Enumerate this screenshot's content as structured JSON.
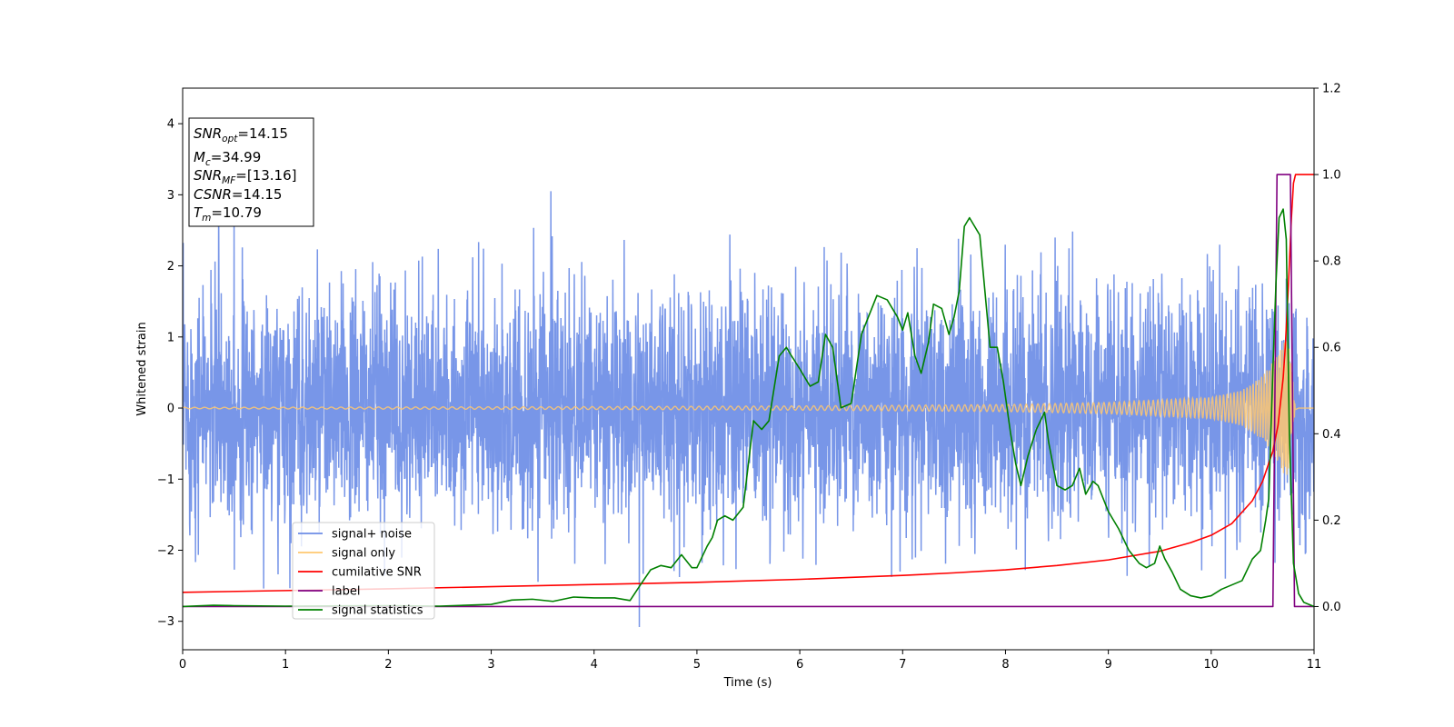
{
  "chart_data": {
    "type": "line",
    "title": "",
    "xlabel": "Time (s)",
    "ylabel_left": "Whitened strain",
    "ylabel_right": "",
    "xlim": [
      0,
      11
    ],
    "ylim_left": [
      -3.4,
      4.5
    ],
    "ylim_right": [
      -0.1,
      1.2
    ],
    "x_ticks": [
      "0",
      "1",
      "2",
      "3",
      "4",
      "5",
      "6",
      "7",
      "8",
      "9",
      "10",
      "11"
    ],
    "y_ticks_left": [
      "−3",
      "−2",
      "−1",
      "0",
      "1",
      "2",
      "3",
      "4"
    ],
    "y_ticks_right": [
      "0.0",
      "0.2",
      "0.4",
      "0.6",
      "0.8",
      "1.0",
      "1.2"
    ],
    "grid": false,
    "legend_position": "lower-left",
    "legend": [
      {
        "label": "signal+ noise",
        "color": "#6d8de6"
      },
      {
        "label": "signal only",
        "color": "#ffc870"
      },
      {
        "label": "cumilative SNR",
        "color": "#ff0000"
      },
      {
        "label": "label",
        "color": "#800080"
      },
      {
        "label": "signal statistics",
        "color": "#008000"
      }
    ],
    "info_box": [
      {
        "main": "SNR",
        "sub": "opt",
        "value": "=14.15"
      },
      {
        "main": "M",
        "sub": "c",
        "value": "=34.99"
      },
      {
        "main": "SNR",
        "sub": "MF",
        "value": "=[13.16]"
      },
      {
        "main": "CSNR",
        "sub": "",
        "value": "=14.15"
      },
      {
        "main": "T",
        "sub": "m",
        "value": "=10.79"
      }
    ],
    "series": [
      {
        "name": "signal+ noise",
        "axis": "left",
        "color": "#6d8de6",
        "description": "whitened noise, roughly ±1 sigma, spikes to about ±2.5",
        "x_range": [
          0,
          11
        ],
        "peaks": [
          [
            0.35,
            2.9
          ],
          [
            0.5,
            2.7
          ],
          [
            3.58,
            3.05
          ],
          [
            4.44,
            -3.08
          ]
        ]
      },
      {
        "name": "signal only",
        "axis": "left",
        "color": "#ffc870",
        "description": "chirp, amplitude grows toward merger",
        "x_range": [
          0,
          11
        ],
        "envelope": [
          [
            0,
            0.01
          ],
          [
            4,
            0.02
          ],
          [
            6,
            0.03
          ],
          [
            8,
            0.05
          ],
          [
            9,
            0.08
          ],
          [
            10,
            0.15
          ],
          [
            10.3,
            0.25
          ],
          [
            10.5,
            0.45
          ],
          [
            10.65,
            0.75
          ],
          [
            10.72,
            1.0
          ],
          [
            10.76,
            0.85
          ],
          [
            10.8,
            0.3
          ],
          [
            10.85,
            0.0
          ]
        ]
      },
      {
        "name": "cumilative SNR",
        "axis": "right",
        "color": "#ff0000",
        "x": [
          0,
          1,
          2,
          3,
          4,
          5,
          6,
          7,
          7.5,
          8,
          8.5,
          9,
          9.5,
          9.8,
          10,
          10.2,
          10.4,
          10.5,
          10.6,
          10.65,
          10.7,
          10.72,
          10.75,
          10.78,
          10.8,
          10.82,
          11
        ],
        "y": [
          0.033,
          0.037,
          0.041,
          0.046,
          0.051,
          0.056,
          0.063,
          0.072,
          0.078,
          0.085,
          0.095,
          0.108,
          0.128,
          0.148,
          0.165,
          0.192,
          0.245,
          0.29,
          0.36,
          0.42,
          0.53,
          0.6,
          0.74,
          0.9,
          0.98,
          1.0,
          1.0
        ]
      },
      {
        "name": "label",
        "axis": "right",
        "color": "#800080",
        "x": [
          0,
          10.6,
          10.64,
          10.77,
          10.81,
          11
        ],
        "y": [
          0,
          0,
          1,
          1,
          0,
          0
        ]
      },
      {
        "name": "signal statistics",
        "axis": "right",
        "color": "#008000",
        "x": [
          0,
          0.3,
          0.5,
          1,
          2,
          2.5,
          3,
          3.2,
          3.4,
          3.6,
          3.8,
          4,
          4.2,
          4.35,
          4.45,
          4.55,
          4.65,
          4.75,
          4.85,
          4.95,
          5.0,
          5.1,
          5.15,
          5.2,
          5.27,
          5.35,
          5.45,
          5.55,
          5.63,
          5.7,
          5.8,
          5.87,
          5.92,
          6.0,
          6.1,
          6.18,
          6.25,
          6.32,
          6.4,
          6.5,
          6.6,
          6.75,
          6.85,
          6.95,
          7.0,
          7.05,
          7.12,
          7.18,
          7.25,
          7.3,
          7.38,
          7.45,
          7.5,
          7.55,
          7.6,
          7.65,
          7.7,
          7.75,
          7.85,
          7.92,
          7.98,
          8.05,
          8.1,
          8.15,
          8.22,
          8.3,
          8.38,
          8.42,
          8.5,
          8.58,
          8.65,
          8.72,
          8.78,
          8.85,
          8.9,
          9.0,
          9.1,
          9.2,
          9.3,
          9.37,
          9.45,
          9.5,
          9.55,
          9.62,
          9.7,
          9.8,
          9.9,
          10.0,
          10.1,
          10.2,
          10.3,
          10.4,
          10.48,
          10.53,
          10.56,
          10.6,
          10.63,
          10.66,
          10.7,
          10.73,
          10.76,
          10.8,
          10.85,
          10.9,
          11
        ],
        "y": [
          0,
          0.003,
          0.002,
          0.001,
          0.002,
          0.001,
          0.005,
          0.015,
          0.017,
          0.012,
          0.022,
          0.02,
          0.02,
          0.014,
          0.05,
          0.085,
          0.095,
          0.09,
          0.12,
          0.09,
          0.09,
          0.14,
          0.16,
          0.2,
          0.21,
          0.2,
          0.23,
          0.43,
          0.41,
          0.43,
          0.58,
          0.6,
          0.58,
          0.55,
          0.51,
          0.52,
          0.63,
          0.6,
          0.46,
          0.47,
          0.63,
          0.72,
          0.71,
          0.67,
          0.64,
          0.68,
          0.58,
          0.54,
          0.61,
          0.7,
          0.69,
          0.63,
          0.67,
          0.73,
          0.88,
          0.9,
          0.88,
          0.86,
          0.6,
          0.6,
          0.52,
          0.4,
          0.33,
          0.28,
          0.35,
          0.41,
          0.45,
          0.38,
          0.28,
          0.27,
          0.28,
          0.32,
          0.26,
          0.29,
          0.28,
          0.22,
          0.18,
          0.13,
          0.1,
          0.09,
          0.1,
          0.14,
          0.11,
          0.08,
          0.04,
          0.025,
          0.02,
          0.025,
          0.04,
          0.05,
          0.06,
          0.11,
          0.13,
          0.2,
          0.25,
          0.55,
          0.75,
          0.9,
          0.92,
          0.85,
          0.4,
          0.1,
          0.03,
          0.01,
          0.0
        ]
      }
    ]
  }
}
